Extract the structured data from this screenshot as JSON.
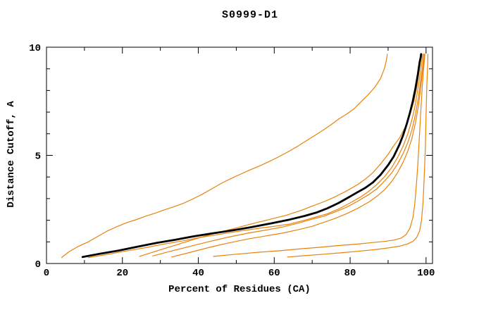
{
  "meta": {
    "title": "S0999-D1"
  },
  "chart_data": {
    "type": "line",
    "title": "S0999-D1",
    "xlabel": "Percent of Residues (CA)",
    "ylabel": "Distance Cutoff, A",
    "xlim": [
      0,
      101.7
    ],
    "ylim": [
      0,
      10
    ],
    "x_major_ticks": [
      0,
      20,
      40,
      60,
      80,
      100
    ],
    "x_minor_ticks": [
      10,
      30,
      50,
      70,
      90
    ],
    "y_major_ticks": [
      0,
      5,
      10
    ],
    "y_minor_ticks": [
      1,
      2,
      3,
      4,
      6,
      7,
      8,
      9
    ],
    "grid": false,
    "legend": "none",
    "colors": {
      "frame": "#000000",
      "highlight_series": "#000000",
      "other_series": "#e8820c"
    },
    "series": [
      {
        "name": "black-thick-curve",
        "color": "#000000",
        "width": 2.8,
        "points": [
          [
            9.5,
            0.3
          ],
          [
            14,
            0.45
          ],
          [
            19,
            0.6
          ],
          [
            24,
            0.78
          ],
          [
            29,
            0.95
          ],
          [
            34,
            1.1
          ],
          [
            39,
            1.26
          ],
          [
            44,
            1.4
          ],
          [
            49,
            1.53
          ],
          [
            54,
            1.68
          ],
          [
            59,
            1.85
          ],
          [
            64,
            2.03
          ],
          [
            68,
            2.2
          ],
          [
            71,
            2.35
          ],
          [
            74,
            2.55
          ],
          [
            77,
            2.8
          ],
          [
            79.5,
            3.05
          ],
          [
            82,
            3.3
          ],
          [
            84,
            3.5
          ],
          [
            86,
            3.75
          ],
          [
            88,
            4.1
          ],
          [
            90,
            4.55
          ],
          [
            91.5,
            4.95
          ],
          [
            93,
            5.5
          ],
          [
            94,
            5.95
          ],
          [
            95,
            6.5
          ],
          [
            95.8,
            7.0
          ],
          [
            96.5,
            7.5
          ],
          [
            97.2,
            8.1
          ],
          [
            97.8,
            8.7
          ],
          [
            98.3,
            9.3
          ],
          [
            98.6,
            9.55
          ],
          [
            98.7,
            9.68
          ]
        ]
      },
      {
        "name": "orange-curve-1-high",
        "color": "#e8820c",
        "width": 1.2,
        "points": [
          [
            4,
            0.28
          ],
          [
            6,
            0.55
          ],
          [
            8.5,
            0.8
          ],
          [
            11,
            1.0
          ],
          [
            13.5,
            1.25
          ],
          [
            16,
            1.5
          ],
          [
            18.5,
            1.7
          ],
          [
            21,
            1.88
          ],
          [
            23.5,
            2.02
          ],
          [
            26,
            2.18
          ],
          [
            28.5,
            2.32
          ],
          [
            31,
            2.48
          ],
          [
            33.5,
            2.62
          ],
          [
            36,
            2.78
          ],
          [
            38.5,
            2.98
          ],
          [
            41,
            3.2
          ],
          [
            43.5,
            3.45
          ],
          [
            46,
            3.7
          ],
          [
            48.5,
            3.92
          ],
          [
            51,
            4.12
          ],
          [
            53.5,
            4.32
          ],
          [
            56,
            4.5
          ],
          [
            58.5,
            4.7
          ],
          [
            61,
            4.92
          ],
          [
            63.5,
            5.15
          ],
          [
            66,
            5.4
          ],
          [
            68.5,
            5.68
          ],
          [
            71,
            5.95
          ],
          [
            73,
            6.18
          ],
          [
            75,
            6.42
          ],
          [
            77,
            6.68
          ],
          [
            79,
            6.9
          ],
          [
            81,
            7.15
          ],
          [
            83,
            7.5
          ],
          [
            85,
            7.85
          ],
          [
            86.5,
            8.15
          ],
          [
            88,
            8.55
          ],
          [
            89,
            9.0
          ],
          [
            89.5,
            9.35
          ],
          [
            89.8,
            9.68
          ]
        ]
      },
      {
        "name": "orange-curve-2",
        "color": "#e8820c",
        "width": 1.2,
        "points": [
          [
            24.5,
            0.33
          ],
          [
            29,
            0.58
          ],
          [
            34,
            0.85
          ],
          [
            39,
            1.12
          ],
          [
            44,
            1.38
          ],
          [
            49,
            1.6
          ],
          [
            54,
            1.83
          ],
          [
            59,
            2.05
          ],
          [
            63,
            2.22
          ],
          [
            67,
            2.45
          ],
          [
            70,
            2.65
          ],
          [
            73,
            2.85
          ],
          [
            76,
            3.08
          ],
          [
            79,
            3.35
          ],
          [
            82,
            3.65
          ],
          [
            84,
            3.9
          ],
          [
            86,
            4.2
          ],
          [
            88,
            4.6
          ],
          [
            90,
            5.05
          ],
          [
            91.5,
            5.45
          ],
          [
            93,
            5.8
          ],
          [
            94.5,
            6.3
          ],
          [
            95.8,
            6.9
          ],
          [
            96.8,
            7.5
          ],
          [
            97.6,
            8.2
          ],
          [
            98.2,
            8.9
          ],
          [
            98.6,
            9.4
          ],
          [
            98.8,
            9.68
          ]
        ]
      },
      {
        "name": "orange-curve-3",
        "color": "#e8820c",
        "width": 1.2,
        "points": [
          [
            11,
            0.27
          ],
          [
            16,
            0.42
          ],
          [
            21,
            0.58
          ],
          [
            26,
            0.73
          ],
          [
            31,
            0.9
          ],
          [
            36,
            1.05
          ],
          [
            41,
            1.22
          ],
          [
            46,
            1.36
          ],
          [
            51,
            1.5
          ],
          [
            56,
            1.63
          ],
          [
            60,
            1.72
          ],
          [
            64,
            1.82
          ],
          [
            68,
            2.0
          ],
          [
            71,
            2.15
          ],
          [
            74,
            2.3
          ],
          [
            77,
            2.52
          ],
          [
            80,
            2.8
          ],
          [
            83,
            3.1
          ],
          [
            85,
            3.35
          ],
          [
            87,
            3.65
          ],
          [
            89,
            4.0
          ],
          [
            91,
            4.45
          ],
          [
            92.5,
            4.9
          ],
          [
            94,
            5.45
          ],
          [
            95.2,
            6.0
          ],
          [
            96.2,
            6.6
          ],
          [
            97,
            7.2
          ],
          [
            97.7,
            7.9
          ],
          [
            98.3,
            8.6
          ],
          [
            98.8,
            9.2
          ],
          [
            99.1,
            9.68
          ]
        ]
      },
      {
        "name": "orange-curve-4",
        "color": "#e8820c",
        "width": 1.2,
        "points": [
          [
            28,
            0.35
          ],
          [
            33,
            0.58
          ],
          [
            38,
            0.8
          ],
          [
            43,
            1.02
          ],
          [
            48,
            1.22
          ],
          [
            53,
            1.4
          ],
          [
            58,
            1.55
          ],
          [
            62,
            1.68
          ],
          [
            66,
            1.85
          ],
          [
            70,
            2.05
          ],
          [
            73,
            2.18
          ],
          [
            76,
            2.38
          ],
          [
            79,
            2.6
          ],
          [
            82,
            2.88
          ],
          [
            85,
            3.2
          ],
          [
            87,
            3.45
          ],
          [
            89,
            3.8
          ],
          [
            91,
            4.2
          ],
          [
            92.5,
            4.6
          ],
          [
            94,
            5.1
          ],
          [
            95.2,
            5.6
          ],
          [
            96.3,
            6.2
          ],
          [
            97.2,
            6.9
          ],
          [
            98,
            7.7
          ],
          [
            98.6,
            8.5
          ],
          [
            99.1,
            9.1
          ],
          [
            99.4,
            9.68
          ]
        ]
      },
      {
        "name": "orange-curve-5",
        "color": "#e8820c",
        "width": 1.2,
        "points": [
          [
            33,
            0.3
          ],
          [
            38,
            0.52
          ],
          [
            43,
            0.75
          ],
          [
            48,
            0.95
          ],
          [
            53,
            1.13
          ],
          [
            58,
            1.28
          ],
          [
            62,
            1.4
          ],
          [
            66,
            1.55
          ],
          [
            70,
            1.72
          ],
          [
            73,
            1.9
          ],
          [
            76,
            2.08
          ],
          [
            79,
            2.3
          ],
          [
            82,
            2.55
          ],
          [
            85,
            2.85
          ],
          [
            87,
            3.1
          ],
          [
            89,
            3.4
          ],
          [
            91,
            3.8
          ],
          [
            92.5,
            4.2
          ],
          [
            94,
            4.7
          ],
          [
            95.2,
            5.2
          ],
          [
            96.3,
            5.8
          ],
          [
            97.2,
            6.5
          ],
          [
            98,
            7.3
          ],
          [
            98.7,
            8.3
          ],
          [
            99.2,
            9.1
          ],
          [
            99.5,
            9.68
          ]
        ]
      },
      {
        "name": "orange-curve-6-low",
        "color": "#e8820c",
        "width": 1.2,
        "points": [
          [
            44,
            0.33
          ],
          [
            50,
            0.43
          ],
          [
            56,
            0.52
          ],
          [
            62,
            0.6
          ],
          [
            67,
            0.68
          ],
          [
            72,
            0.75
          ],
          [
            77,
            0.83
          ],
          [
            82,
            0.9
          ],
          [
            86,
            0.97
          ],
          [
            89,
            1.02
          ],
          [
            91.5,
            1.08
          ],
          [
            93.5,
            1.18
          ],
          [
            94.8,
            1.35
          ],
          [
            95.8,
            1.65
          ],
          [
            96.5,
            2.1
          ],
          [
            97,
            2.7
          ],
          [
            97.4,
            3.5
          ],
          [
            97.8,
            4.5
          ],
          [
            98.2,
            5.7
          ],
          [
            98.6,
            7.0
          ],
          [
            99,
            8.2
          ],
          [
            99.4,
            9.1
          ],
          [
            99.7,
            9.68
          ]
        ]
      },
      {
        "name": "orange-curve-7-low",
        "color": "#e8820c",
        "width": 1.2,
        "points": [
          [
            63.5,
            0.3
          ],
          [
            68,
            0.36
          ],
          [
            73,
            0.43
          ],
          [
            78,
            0.5
          ],
          [
            83,
            0.58
          ],
          [
            87,
            0.65
          ],
          [
            90,
            0.72
          ],
          [
            93,
            0.8
          ],
          [
            95,
            0.9
          ],
          [
            96.5,
            1.02
          ],
          [
            97.5,
            1.2
          ],
          [
            98.3,
            1.5
          ],
          [
            98.8,
            2.0
          ],
          [
            99.2,
            2.8
          ],
          [
            99.5,
            3.9
          ],
          [
            99.8,
            5.3
          ],
          [
            100,
            6.8
          ],
          [
            100.2,
            8.2
          ],
          [
            100.4,
            9.1
          ],
          [
            100.5,
            9.68
          ]
        ]
      }
    ]
  }
}
